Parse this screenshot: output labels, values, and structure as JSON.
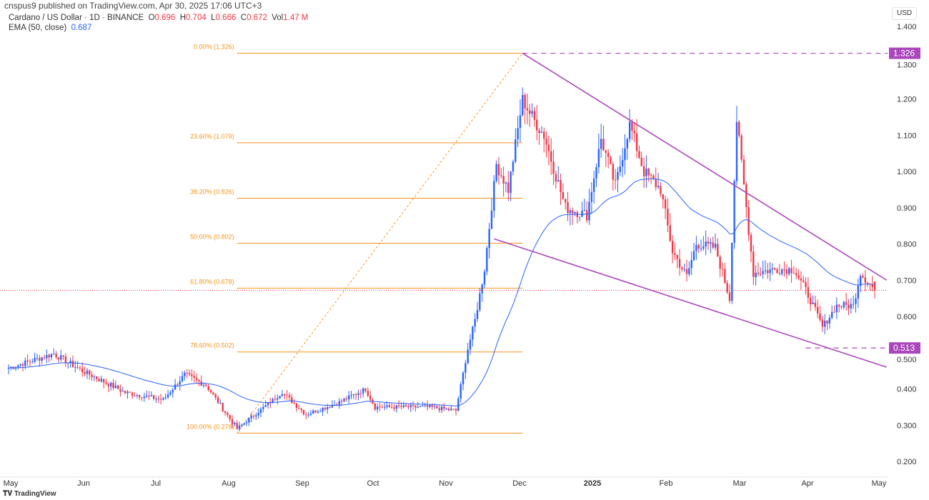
{
  "header": {
    "published": "cnspus9 published on TradingView.com, Apr 30, 2025 17:06 UTC+3",
    "symbol": "Cardano / US Dollar · 1D · BINANCE",
    "o_label": "O",
    "o": "0.696",
    "h_label": "H",
    "h": "0.704",
    "l_label": "L",
    "l": "0.666",
    "c_label": "C",
    "c": "0.672",
    "vol_label": "Vol",
    "vol": "1.47 M",
    "ema_label": "EMA (50, close)",
    "ema": "0.687"
  },
  "currency": "USD",
  "brand": "TradingView",
  "colors": {
    "up": "#2962ff",
    "down": "#f23645",
    "ema": "#2962ff",
    "fib": "#f7931a",
    "trend": "#ab47bc"
  },
  "chart_data": {
    "type": "candlestick",
    "title": "Cardano / US Dollar · 1D · BINANCE",
    "ylim": [
      0.2,
      1.4
    ],
    "yticks": [
      "1.400",
      "1.300",
      "1.200",
      "1.100",
      "1.000",
      "0.900",
      "0.800",
      "0.700",
      "0.600",
      "0.500",
      "0.400",
      "0.300",
      "0.200"
    ],
    "xticks": [
      "May",
      "Jun",
      "Jul",
      "Aug",
      "Sep",
      "Oct",
      "Nov",
      "Dec",
      "2025",
      "Feb",
      "Mar",
      "Apr",
      "May"
    ],
    "price_path_day_close": [
      [
        0,
        0.458
      ],
      [
        19,
        0.497
      ],
      [
        31,
        0.45
      ],
      [
        49,
        0.39
      ],
      [
        65,
        0.37
      ],
      [
        74,
        0.44
      ],
      [
        83,
        0.41
      ],
      [
        96,
        0.29
      ],
      [
        115,
        0.39
      ],
      [
        125,
        0.33
      ],
      [
        138,
        0.36
      ],
      [
        150,
        0.4
      ],
      [
        154,
        0.35
      ],
      [
        177,
        0.35
      ],
      [
        188,
        0.34
      ],
      [
        193,
        0.51
      ],
      [
        196,
        0.59
      ],
      [
        200,
        0.73
      ],
      [
        205,
        1.02
      ],
      [
        210,
        0.95
      ],
      [
        216,
        1.2
      ],
      [
        220,
        1.15
      ],
      [
        225,
        1.1
      ],
      [
        234,
        0.9
      ],
      [
        243,
        0.88
      ],
      [
        249,
        1.09
      ],
      [
        255,
        0.96
      ],
      [
        261,
        1.13
      ],
      [
        267,
        1.0
      ],
      [
        274,
        0.95
      ],
      [
        279,
        0.78
      ],
      [
        285,
        0.71
      ],
      [
        289,
        0.8
      ],
      [
        297,
        0.79
      ],
      [
        303,
        0.65
      ],
      [
        306,
        1.14
      ],
      [
        309,
        0.96
      ],
      [
        313,
        0.72
      ],
      [
        322,
        0.73
      ],
      [
        330,
        0.73
      ],
      [
        336,
        0.66
      ],
      [
        342,
        0.57
      ],
      [
        348,
        0.63
      ],
      [
        355,
        0.63
      ],
      [
        358,
        0.72
      ],
      [
        364,
        0.672
      ]
    ],
    "fib_levels": [
      {
        "label": "0.00% (1.326)",
        "value": 1.326
      },
      {
        "label": "23.60% (1.079)",
        "value": 1.079
      },
      {
        "label": "38.20% (0.926)",
        "value": 0.926
      },
      {
        "label": "50.00% (0.802)",
        "value": 0.802
      },
      {
        "label": "61.80% (0.678)",
        "value": 0.678
      },
      {
        "label": "78.60% (0.502)",
        "value": 0.502
      },
      {
        "label": "100.00% (0.278)",
        "value": 0.278
      }
    ],
    "fib_range_days": [
      96,
      216
    ],
    "markers": [
      {
        "label": "1.326",
        "value": 1.326,
        "from_day": 216
      },
      {
        "label": "0.513",
        "value": 0.513,
        "from_day": 335
      }
    ],
    "current_price": 0.672,
    "wedge_upper": [
      [
        216,
        1.326
      ],
      [
        369,
        0.7
      ]
    ],
    "wedge_lower": [
      [
        204,
        0.814
      ],
      [
        369,
        0.46
      ]
    ],
    "ema_period": 50
  }
}
